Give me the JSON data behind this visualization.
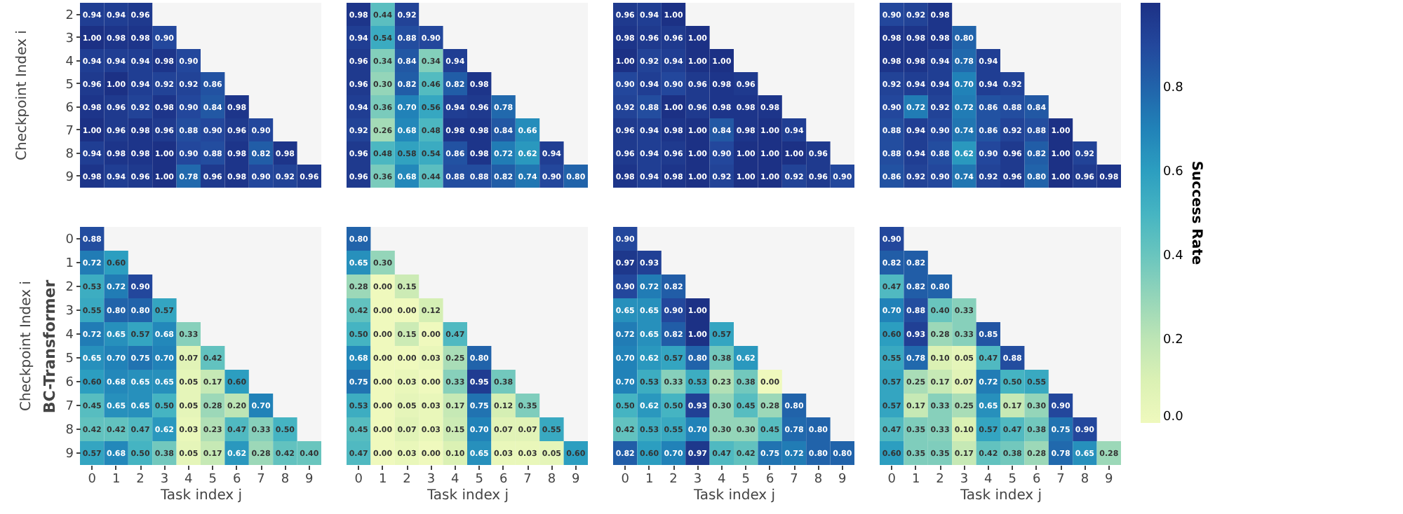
{
  "chart_data": [
    {
      "type": "heatmap",
      "ylabel": "Checkpoint Index i",
      "tick_labels": "y",
      "data_labels": true,
      "categories": [
        "0",
        "1",
        "2",
        "3",
        "4",
        "5",
        "6",
        "7",
        "8",
        "9"
      ],
      "y_categories": [
        "2",
        "3",
        "4",
        "5",
        "6",
        "7",
        "8",
        "9"
      ],
      "cells": [
        [
          0.94,
          0.94,
          0.96,
          null,
          null,
          null,
          null,
          null,
          null,
          null
        ],
        [
          1.0,
          0.98,
          0.98,
          0.9,
          null,
          null,
          null,
          null,
          null,
          null
        ],
        [
          0.94,
          0.94,
          0.94,
          0.98,
          0.9,
          null,
          null,
          null,
          null,
          null
        ],
        [
          0.96,
          1.0,
          0.94,
          0.92,
          0.92,
          0.86,
          null,
          null,
          null,
          null
        ],
        [
          0.98,
          0.96,
          0.92,
          0.98,
          0.9,
          0.84,
          0.98,
          null,
          null,
          null
        ],
        [
          1.0,
          0.96,
          0.98,
          0.96,
          0.88,
          0.9,
          0.96,
          0.9,
          null,
          null
        ],
        [
          0.94,
          0.98,
          0.98,
          1.0,
          0.9,
          0.88,
          0.98,
          0.82,
          0.98,
          null
        ],
        [
          0.98,
          0.94,
          0.96,
          1.0,
          0.78,
          0.96,
          0.98,
          0.9,
          0.92,
          0.96
        ]
      ],
      "cell_labels": [
        [
          "0.94",
          "0.94",
          "0.96",
          null,
          null,
          null,
          null,
          null,
          null,
          null
        ],
        [
          "1.00",
          "0.98",
          "0.98",
          "0.90",
          null,
          null,
          null,
          null,
          null,
          null
        ],
        [
          "0.94",
          "0.94",
          "0.94",
          "0.98",
          "0.90",
          null,
          null,
          null,
          null,
          null
        ],
        [
          "0.96",
          "1.00",
          "0.94",
          "0.92",
          "0.92",
          "0.86",
          null,
          null,
          null,
          null
        ],
        [
          "0.98",
          "0.96",
          "0.92",
          "0.98",
          "0.90",
          "0.84",
          "0.98",
          null,
          null,
          null
        ],
        [
          "1.00",
          "0.96",
          "0.98",
          "0.96",
          "0.88",
          "0.90",
          "0.96",
          "0.90",
          null,
          null
        ],
        [
          "0.94",
          "0.98",
          "0.98",
          "1.00",
          "0.90",
          "0.88",
          "0.98",
          "0.82",
          "0.98",
          null
        ],
        [
          "0.98",
          "0.94",
          "0.96",
          "1.00",
          "0.78",
          "0.96",
          "0.98",
          "0.90",
          "0.92",
          "0.96"
        ]
      ]
    },
    {
      "type": "heatmap",
      "tick_labels": false,
      "data_labels": true,
      "categories": [
        "0",
        "1",
        "2",
        "3",
        "4",
        "5",
        "6",
        "7",
        "8",
        "9"
      ],
      "y_categories": [
        "2",
        "3",
        "4",
        "5",
        "6",
        "7",
        "8",
        "9"
      ],
      "cells": [
        [
          0.98,
          0.44,
          0.92,
          null,
          null,
          null,
          null,
          null,
          null,
          null
        ],
        [
          0.94,
          0.54,
          0.88,
          0.9,
          null,
          null,
          null,
          null,
          null,
          null
        ],
        [
          0.96,
          0.34,
          0.84,
          0.34,
          0.94,
          null,
          null,
          null,
          null,
          null
        ],
        [
          0.96,
          0.3,
          0.82,
          0.46,
          0.82,
          0.98,
          null,
          null,
          null,
          null
        ],
        [
          0.94,
          0.36,
          0.7,
          0.56,
          0.94,
          0.96,
          0.78,
          null,
          null,
          null
        ],
        [
          0.92,
          0.26,
          0.68,
          0.48,
          0.98,
          0.98,
          0.84,
          0.66,
          null,
          null
        ],
        [
          0.96,
          0.48,
          0.58,
          0.54,
          0.86,
          0.98,
          0.72,
          0.62,
          0.94,
          null
        ],
        [
          0.96,
          0.36,
          0.68,
          0.44,
          0.88,
          0.88,
          0.82,
          0.74,
          0.9,
          0.8
        ]
      ],
      "cell_labels": [
        [
          "0.98",
          "0.44",
          "0.92",
          null,
          null,
          null,
          null,
          null,
          null,
          null
        ],
        [
          "0.94",
          "0.54",
          "0.88",
          "0.90",
          null,
          null,
          null,
          null,
          null,
          null
        ],
        [
          "0.96",
          "0.34",
          "0.84",
          "0.34",
          "0.94",
          null,
          null,
          null,
          null,
          null
        ],
        [
          "0.96",
          "0.30",
          "0.82",
          "0.46",
          "0.82",
          "0.98",
          null,
          null,
          null,
          null
        ],
        [
          "0.94",
          "0.36",
          "0.70",
          "0.56",
          "0.94",
          "0.96",
          "0.78",
          null,
          null,
          null
        ],
        [
          "0.92",
          "0.26",
          "0.68",
          "0.48",
          "0.98",
          "0.98",
          "0.84",
          "0.66",
          null,
          null
        ],
        [
          "0.96",
          "0.48",
          "0.58",
          "0.54",
          "0.86",
          "0.98",
          "0.72",
          "0.62",
          "0.94",
          null
        ],
        [
          "0.96",
          "0.36",
          "0.68",
          "0.44",
          "0.88",
          "0.88",
          "0.82",
          "0.74",
          "0.90",
          "0.80"
        ]
      ]
    },
    {
      "type": "heatmap",
      "tick_labels": false,
      "data_labels": true,
      "categories": [
        "0",
        "1",
        "2",
        "3",
        "4",
        "5",
        "6",
        "7",
        "8",
        "9"
      ],
      "y_categories": [
        "2",
        "3",
        "4",
        "5",
        "6",
        "7",
        "8",
        "9"
      ],
      "cells": [
        [
          0.96,
          0.94,
          1.0,
          null,
          null,
          null,
          null,
          null,
          null,
          null
        ],
        [
          0.98,
          0.96,
          0.96,
          1.0,
          null,
          null,
          null,
          null,
          null,
          null
        ],
        [
          1.0,
          0.92,
          0.94,
          1.0,
          1.0,
          null,
          null,
          null,
          null,
          null
        ],
        [
          0.9,
          0.94,
          0.9,
          0.96,
          0.98,
          0.96,
          null,
          null,
          null,
          null
        ],
        [
          0.92,
          0.88,
          1.0,
          0.96,
          0.98,
          0.98,
          0.98,
          null,
          null,
          null
        ],
        [
          0.96,
          0.94,
          0.98,
          1.0,
          0.84,
          0.98,
          1.0,
          0.94,
          null,
          null
        ],
        [
          0.96,
          0.94,
          0.96,
          1.0,
          0.9,
          1.0,
          1.0,
          1.0,
          0.96,
          null
        ],
        [
          0.98,
          0.94,
          0.98,
          1.0,
          0.92,
          1.0,
          1.0,
          0.92,
          0.96,
          0.9
        ]
      ],
      "cell_labels": [
        [
          "0.96",
          "0.94",
          "1.00",
          null,
          null,
          null,
          null,
          null,
          null,
          null
        ],
        [
          "0.98",
          "0.96",
          "0.96",
          "1.00",
          null,
          null,
          null,
          null,
          null,
          null
        ],
        [
          "1.00",
          "0.92",
          "0.94",
          "1.00",
          "1.00",
          null,
          null,
          null,
          null,
          null
        ],
        [
          "0.90",
          "0.94",
          "0.90",
          "0.96",
          "0.98",
          "0.96",
          null,
          null,
          null,
          null
        ],
        [
          "0.92",
          "0.88",
          "1.00",
          "0.96",
          "0.98",
          "0.98",
          "0.98",
          null,
          null,
          null
        ],
        [
          "0.96",
          "0.94",
          "0.98",
          "1.00",
          "0.84",
          "0.98",
          "1.00",
          "0.94",
          null,
          null
        ],
        [
          "0.96",
          "0.94",
          "0.96",
          "1.00",
          "0.90",
          "1.00",
          "1.00",
          "1.00",
          "0.96",
          null
        ],
        [
          "0.98",
          "0.94",
          "0.98",
          "1.00",
          "0.92",
          "1.00",
          "1.00",
          "0.92",
          "0.96",
          "0.90"
        ]
      ]
    },
    {
      "type": "heatmap",
      "tick_labels": false,
      "data_labels": true,
      "categories": [
        "0",
        "1",
        "2",
        "3",
        "4",
        "5",
        "6",
        "7",
        "8",
        "9"
      ],
      "y_categories": [
        "2",
        "3",
        "4",
        "5",
        "6",
        "7",
        "8",
        "9"
      ],
      "cells": [
        [
          0.9,
          0.92,
          0.98,
          null,
          null,
          null,
          null,
          null,
          null,
          null
        ],
        [
          0.98,
          0.98,
          0.98,
          0.8,
          null,
          null,
          null,
          null,
          null,
          null
        ],
        [
          0.98,
          0.98,
          0.94,
          0.78,
          0.94,
          null,
          null,
          null,
          null,
          null
        ],
        [
          0.92,
          0.94,
          0.94,
          0.7,
          0.94,
          0.92,
          null,
          null,
          null,
          null
        ],
        [
          0.9,
          0.72,
          0.92,
          0.72,
          0.86,
          0.88,
          0.84,
          null,
          null,
          null
        ],
        [
          0.88,
          0.94,
          0.9,
          0.74,
          0.86,
          0.92,
          0.88,
          1.0,
          null,
          null
        ],
        [
          0.88,
          0.94,
          0.88,
          0.62,
          0.9,
          0.96,
          0.82,
          1.0,
          0.92,
          null
        ],
        [
          0.86,
          0.92,
          0.9,
          0.74,
          0.92,
          0.96,
          0.8,
          1.0,
          0.96,
          0.98
        ]
      ],
      "cell_labels": [
        [
          "0.90",
          "0.92",
          "0.98",
          null,
          null,
          null,
          null,
          null,
          null,
          null
        ],
        [
          "0.98",
          "0.98",
          "0.98",
          "0.80",
          null,
          null,
          null,
          null,
          null,
          null
        ],
        [
          "0.98",
          "0.98",
          "0.94",
          "0.78",
          "0.94",
          null,
          null,
          null,
          null,
          null
        ],
        [
          "0.92",
          "0.94",
          "0.94",
          "0.70",
          "0.94",
          "0.92",
          null,
          null,
          null,
          null
        ],
        [
          "0.90",
          "0.72",
          "0.92",
          "0.72",
          "0.86",
          "0.88",
          "0.84",
          null,
          null,
          null
        ],
        [
          "0.88",
          "0.94",
          "0.90",
          "0.74",
          "0.86",
          "0.92",
          "0.88",
          "1.00",
          null,
          null
        ],
        [
          "0.88",
          "0.94",
          "0.88",
          "0.62",
          "0.90",
          "0.96",
          "0.82",
          "1.00",
          "0.92",
          null
        ],
        [
          "0.86",
          "0.92",
          "0.90",
          "0.74",
          "0.92",
          "0.96",
          "0.80",
          "1.00",
          "0.96",
          "0.98"
        ]
      ]
    },
    {
      "type": "heatmap",
      "title": "BC-Transformer",
      "xlabel": "Task index j",
      "ylabel": "Checkpoint Index i",
      "data_labels": true,
      "categories": [
        "0",
        "1",
        "2",
        "3",
        "4",
        "5",
        "6",
        "7",
        "8",
        "9"
      ],
      "y_categories": [
        "0",
        "1",
        "2",
        "3",
        "4",
        "5",
        "6",
        "7",
        "8",
        "9"
      ],
      "cells": [
        [
          0.88,
          null,
          null,
          null,
          null,
          null,
          null,
          null,
          null,
          null
        ],
        [
          0.72,
          0.6,
          null,
          null,
          null,
          null,
          null,
          null,
          null,
          null
        ],
        [
          0.53,
          0.72,
          0.9,
          null,
          null,
          null,
          null,
          null,
          null,
          null
        ],
        [
          0.55,
          0.8,
          0.8,
          0.57,
          null,
          null,
          null,
          null,
          null,
          null
        ],
        [
          0.72,
          0.65,
          0.57,
          0.68,
          0.33,
          null,
          null,
          null,
          null,
          null
        ],
        [
          0.65,
          0.7,
          0.75,
          0.7,
          0.07,
          0.42,
          null,
          null,
          null,
          null
        ],
        [
          0.6,
          0.68,
          0.65,
          0.65,
          0.05,
          0.17,
          0.6,
          null,
          null,
          null
        ],
        [
          0.45,
          0.65,
          0.65,
          0.5,
          0.05,
          0.28,
          0.2,
          0.7,
          null,
          null
        ],
        [
          0.42,
          0.42,
          0.47,
          0.62,
          0.03,
          0.23,
          0.47,
          0.33,
          0.5,
          null
        ],
        [
          0.57,
          0.68,
          0.5,
          0.38,
          0.05,
          0.17,
          0.62,
          0.28,
          0.42,
          0.4
        ]
      ],
      "cell_labels": [
        [
          "0.88",
          null,
          null,
          null,
          null,
          null,
          null,
          null,
          null,
          null
        ],
        [
          "0.72",
          "0.60",
          null,
          null,
          null,
          null,
          null,
          null,
          null,
          null
        ],
        [
          "0.53",
          "0.72",
          "0.90",
          null,
          null,
          null,
          null,
          null,
          null,
          null
        ],
        [
          "0.55",
          "0.80",
          "0.80",
          "0.57",
          null,
          null,
          null,
          null,
          null,
          null
        ],
        [
          "0.72",
          "0.65",
          "0.57",
          "0.68",
          "0.33",
          null,
          null,
          null,
          null,
          null
        ],
        [
          "0.65",
          "0.70",
          "0.75",
          "0.70",
          "0.07",
          "0.42",
          null,
          null,
          null,
          null
        ],
        [
          "0.60",
          "0.68",
          "0.65",
          "0.65",
          "0.05",
          "0.17",
          "0.60",
          null,
          null,
          null
        ],
        [
          "0.45",
          "0.65",
          "0.65",
          "0.50",
          "0.05",
          "0.28",
          "0.20",
          "0.70",
          null,
          null
        ],
        [
          "0.42",
          "0.42",
          "0.47",
          "0.62",
          "0.03",
          "0.23",
          "0.47",
          "0.33",
          "0.50",
          null
        ],
        [
          "0.57",
          "0.68",
          "0.50",
          "0.38",
          "0.05",
          "0.17",
          "0.62",
          "0.28",
          "0.42",
          "0.40"
        ]
      ]
    },
    {
      "type": "heatmap",
      "xlabel": "Task index j",
      "tick_labels": "x",
      "data_labels": true,
      "categories": [
        "0",
        "1",
        "2",
        "3",
        "4",
        "5",
        "6",
        "7",
        "8",
        "9"
      ],
      "y_categories": [
        "0",
        "1",
        "2",
        "3",
        "4",
        "5",
        "6",
        "7",
        "8",
        "9"
      ],
      "cells": [
        [
          0.8,
          null,
          null,
          null,
          null,
          null,
          null,
          null,
          null,
          null
        ],
        [
          0.65,
          0.3,
          null,
          null,
          null,
          null,
          null,
          null,
          null,
          null
        ],
        [
          0.28,
          0.0,
          0.15,
          null,
          null,
          null,
          null,
          null,
          null,
          null
        ],
        [
          0.42,
          0.0,
          0.0,
          0.12,
          null,
          null,
          null,
          null,
          null,
          null
        ],
        [
          0.5,
          0.0,
          0.15,
          0.0,
          0.47,
          null,
          null,
          null,
          null,
          null
        ],
        [
          0.68,
          0.0,
          0.0,
          0.03,
          0.25,
          0.8,
          null,
          null,
          null,
          null
        ],
        [
          0.75,
          0.0,
          0.03,
          0.0,
          0.33,
          0.95,
          0.38,
          null,
          null,
          null
        ],
        [
          0.53,
          0.0,
          0.05,
          0.03,
          0.17,
          0.75,
          0.12,
          0.35,
          null,
          null
        ],
        [
          0.45,
          0.0,
          0.07,
          0.03,
          0.15,
          0.7,
          0.07,
          0.07,
          0.55,
          null
        ],
        [
          0.47,
          0.0,
          0.03,
          0.0,
          0.1,
          0.65,
          0.03,
          0.03,
          0.05,
          0.6
        ]
      ],
      "cell_labels": [
        [
          "0.80",
          null,
          null,
          null,
          null,
          null,
          null,
          null,
          null,
          null
        ],
        [
          "0.65",
          "0.30",
          null,
          null,
          null,
          null,
          null,
          null,
          null,
          null
        ],
        [
          "0.28",
          "0.00",
          "0.15",
          null,
          null,
          null,
          null,
          null,
          null,
          null
        ],
        [
          "0.42",
          "0.00",
          "0.00",
          "0.12",
          null,
          null,
          null,
          null,
          null,
          null
        ],
        [
          "0.50",
          "0.00",
          "0.15",
          "0.00",
          "0.47",
          null,
          null,
          null,
          null,
          null
        ],
        [
          "0.68",
          "0.00",
          "0.00",
          "0.03",
          "0.25",
          "0.80",
          null,
          null,
          null,
          null
        ],
        [
          "0.75",
          "0.00",
          "0.03",
          "0.00",
          "0.33",
          "0.95",
          "0.38",
          null,
          null,
          null
        ],
        [
          "0.53",
          "0.00",
          "0.05",
          "0.03",
          "0.17",
          "0.75",
          "0.12",
          "0.35",
          null,
          null
        ],
        [
          "0.45",
          "0.00",
          "0.07",
          "0.03",
          "0.15",
          "0.70",
          "0.07",
          "0.07",
          "0.55",
          null
        ],
        [
          "0.47",
          "0.00",
          "0.03",
          "0.00",
          "0.10",
          "0.65",
          "0.03",
          "0.03",
          "0.05",
          "0.60"
        ]
      ]
    },
    {
      "type": "heatmap",
      "xlabel": "Task index j",
      "tick_labels": "x",
      "data_labels": true,
      "categories": [
        "0",
        "1",
        "2",
        "3",
        "4",
        "5",
        "6",
        "7",
        "8",
        "9"
      ],
      "y_categories": [
        "0",
        "1",
        "2",
        "3",
        "4",
        "5",
        "6",
        "7",
        "8",
        "9"
      ],
      "cells": [
        [
          0.9,
          null,
          null,
          null,
          null,
          null,
          null,
          null,
          null,
          null
        ],
        [
          0.97,
          0.93,
          null,
          null,
          null,
          null,
          null,
          null,
          null,
          null
        ],
        [
          0.9,
          0.72,
          0.82,
          null,
          null,
          null,
          null,
          null,
          null,
          null
        ],
        [
          0.65,
          0.65,
          0.9,
          1.0,
          null,
          null,
          null,
          null,
          null,
          null
        ],
        [
          0.72,
          0.65,
          0.82,
          1.0,
          0.57,
          null,
          null,
          null,
          null,
          null
        ],
        [
          0.7,
          0.62,
          0.57,
          0.8,
          0.38,
          0.62,
          null,
          null,
          null,
          null
        ],
        [
          0.7,
          0.53,
          0.33,
          0.53,
          0.23,
          0.38,
          0.0,
          null,
          null,
          null
        ],
        [
          0.5,
          0.62,
          0.5,
          0.93,
          0.3,
          0.45,
          0.28,
          0.8,
          null,
          null
        ],
        [
          0.42,
          0.53,
          0.55,
          0.7,
          0.3,
          0.3,
          0.45,
          0.78,
          0.8,
          null
        ],
        [
          0.82,
          0.6,
          0.7,
          0.97,
          0.47,
          0.42,
          0.75,
          0.72,
          0.8,
          0.8
        ]
      ],
      "cell_labels": [
        [
          "0.90",
          null,
          null,
          null,
          null,
          null,
          null,
          null,
          null,
          null
        ],
        [
          "0.97",
          "0.93",
          null,
          null,
          null,
          null,
          null,
          null,
          null,
          null
        ],
        [
          "0.90",
          "0.72",
          "0.82",
          null,
          null,
          null,
          null,
          null,
          null,
          null
        ],
        [
          "0.65",
          "0.65",
          "0.90",
          "1.00",
          null,
          null,
          null,
          null,
          null,
          null
        ],
        [
          "0.72",
          "0.65",
          "0.82",
          "1.00",
          "0.57",
          null,
          null,
          null,
          null,
          null
        ],
        [
          "0.70",
          "0.62",
          "0.57",
          "0.80",
          "0.38",
          "0.62",
          null,
          null,
          null,
          null
        ],
        [
          "0.70",
          "0.53",
          "0.33",
          "0.53",
          "0.23",
          "0.38",
          "0.00",
          null,
          null,
          null
        ],
        [
          "0.50",
          "0.62",
          "0.50",
          "0.93",
          "0.30",
          "0.45",
          "0.28",
          "0.80",
          null,
          null
        ],
        [
          "0.42",
          "0.53",
          "0.55",
          "0.70",
          "0.30",
          "0.30",
          "0.45",
          "0.78",
          "0.80",
          null
        ],
        [
          "0.82",
          "0.60",
          "0.70",
          "0.97",
          "0.47",
          "0.42",
          "0.75",
          "0.72",
          "0.80",
          "0.80"
        ]
      ]
    },
    {
      "type": "heatmap",
      "xlabel": "Task index j",
      "tick_labels": "x",
      "data_labels": true,
      "clabel": "Success Rate",
      "clim": [
        0,
        1
      ],
      "cticks": [
        {
          "value": 0,
          "label": "0.0"
        },
        0.2,
        0.4,
        0.6,
        0.8
      ],
      "categories": [
        "0",
        "1",
        "2",
        "3",
        "4",
        "5",
        "6",
        "7",
        "8",
        "9"
      ],
      "y_categories": [
        "0",
        "1",
        "2",
        "3",
        "4",
        "5",
        "6",
        "7",
        "8",
        "9"
      ],
      "cells": [
        [
          0.9,
          null,
          null,
          null,
          null,
          null,
          null,
          null,
          null,
          null
        ],
        [
          0.82,
          0.82,
          null,
          null,
          null,
          null,
          null,
          null,
          null,
          null
        ],
        [
          0.47,
          0.82,
          0.8,
          null,
          null,
          null,
          null,
          null,
          null,
          null
        ],
        [
          0.7,
          0.88,
          0.4,
          0.33,
          null,
          null,
          null,
          null,
          null,
          null
        ],
        [
          0.6,
          0.93,
          0.28,
          0.33,
          0.85,
          null,
          null,
          null,
          null,
          null
        ],
        [
          0.55,
          0.78,
          0.1,
          0.05,
          0.47,
          0.88,
          null,
          null,
          null,
          null
        ],
        [
          0.57,
          0.25,
          0.17,
          0.07,
          0.72,
          0.5,
          0.55,
          null,
          null,
          null
        ],
        [
          0.57,
          0.17,
          0.33,
          0.25,
          0.65,
          0.17,
          0.3,
          0.9,
          null,
          null
        ],
        [
          0.47,
          0.35,
          0.33,
          0.1,
          0.57,
          0.47,
          0.38,
          0.75,
          0.9,
          null
        ],
        [
          0.6,
          0.35,
          0.35,
          0.17,
          0.42,
          0.38,
          0.28,
          0.78,
          0.65,
          0.28
        ]
      ],
      "cell_labels": [
        [
          "0.90",
          null,
          null,
          null,
          null,
          null,
          null,
          null,
          null,
          null
        ],
        [
          "0.82",
          "0.82",
          null,
          null,
          null,
          null,
          null,
          null,
          null,
          null
        ],
        [
          "0.47",
          "0.82",
          "0.80",
          null,
          null,
          null,
          null,
          null,
          null,
          null
        ],
        [
          "0.70",
          "0.88",
          "0.40",
          "0.33",
          null,
          null,
          null,
          null,
          null,
          null
        ],
        [
          "0.60",
          "0.93",
          "0.28",
          "0.33",
          "0.85",
          null,
          null,
          null,
          null,
          null
        ],
        [
          "0.55",
          "0.78",
          "0.10",
          "0.05",
          "0.47",
          "0.88",
          null,
          null,
          null,
          null
        ],
        [
          "0.57",
          "0.25",
          "0.17",
          "0.07",
          "0.72",
          "0.50",
          "0.55",
          null,
          null,
          null
        ],
        [
          "0.57",
          "0.17",
          "0.33",
          "0.25",
          "0.65",
          "0.17",
          "0.30",
          "0.90",
          null,
          null
        ],
        [
          "0.47",
          "0.35",
          "0.33",
          "0.10",
          "0.57",
          "0.47",
          "0.38",
          "0.75",
          "0.90",
          null
        ],
        [
          "0.60",
          "0.35",
          "0.35",
          "0.17",
          "0.42",
          "0.38",
          "0.28",
          "0.78",
          "0.65",
          "0.28"
        ]
      ]
    }
  ]
}
